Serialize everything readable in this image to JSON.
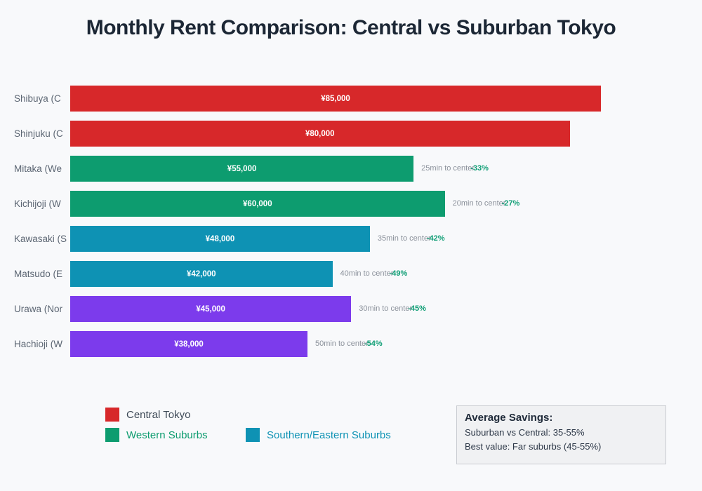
{
  "title": "Monthly Rent Comparison: Central vs Suburban Tokyo",
  "colors": {
    "background": "#f8f9fb",
    "central": "#d7282a",
    "western": "#0d9c6f",
    "south_east": "#0e92b4",
    "far_suburbs": "#7c3bec",
    "percent_text": "#0f9e75",
    "commute_text": "#8b919b",
    "category_text": "#5c6673"
  },
  "chart_data": {
    "type": "bar",
    "orientation": "horizontal",
    "title": "Monthly Rent Comparison: Central vs Suburban Tokyo",
    "xlabel": "",
    "ylabel": "",
    "xlim": [
      0,
      85000
    ],
    "grid": false,
    "legend_position": "bottom-left",
    "categories": [
      "Shibuya (C",
      "Shinjuku (C",
      "Mitaka (We",
      "Kichijoji (W",
      "Kawasaki (S",
      "Matsudo (E",
      "Urawa (Nor",
      "Hachioji (W"
    ],
    "values": [
      85000,
      80000,
      55000,
      60000,
      48000,
      42000,
      45000,
      38000
    ],
    "bars": [
      {
        "category": "Shibuya (C",
        "value": 85000,
        "value_label": "¥85,000",
        "group": "central",
        "commute": null,
        "savings": null
      },
      {
        "category": "Shinjuku (C",
        "value": 80000,
        "value_label": "¥80,000",
        "group": "central",
        "commute": null,
        "savings": null
      },
      {
        "category": "Mitaka (We",
        "value": 55000,
        "value_label": "¥55,000",
        "group": "western",
        "commute": "25min to center",
        "savings": "-33%"
      },
      {
        "category": "Kichijoji (W",
        "value": 60000,
        "value_label": "¥60,000",
        "group": "western",
        "commute": "20min to center",
        "savings": "-27%"
      },
      {
        "category": "Kawasaki (S",
        "value": 48000,
        "value_label": "¥48,000",
        "group": "south_east",
        "commute": "35min to center",
        "savings": "-42%"
      },
      {
        "category": "Matsudo (E",
        "value": 42000,
        "value_label": "¥42,000",
        "group": "south_east",
        "commute": "40min to center",
        "savings": "-49%"
      },
      {
        "category": "Urawa (Nor",
        "value": 45000,
        "value_label": "¥45,000",
        "group": "far_suburbs",
        "commute": "30min to center",
        "savings": "-45%"
      },
      {
        "category": "Hachioji (W",
        "value": 38000,
        "value_label": "¥38,000",
        "group": "far_suburbs",
        "commute": "50min to center",
        "savings": "-54%"
      }
    ]
  },
  "legend": [
    {
      "label": "Central Tokyo",
      "swatch_color": "#d7282a",
      "text_color": "#3e4a57"
    },
    {
      "label": "Western Suburbs",
      "swatch_color": "#0d9c6f",
      "text_color": "#0d9c6f"
    },
    {
      "label": "Southern/Eastern Suburbs",
      "swatch_color": "#0e92b4",
      "text_color": "#0e92b4"
    }
  ],
  "info_box": {
    "title": "Average Savings:",
    "lines": [
      "Suburban vs Central: 35-55%",
      "Best value: Far suburbs (45-55%)"
    ]
  }
}
